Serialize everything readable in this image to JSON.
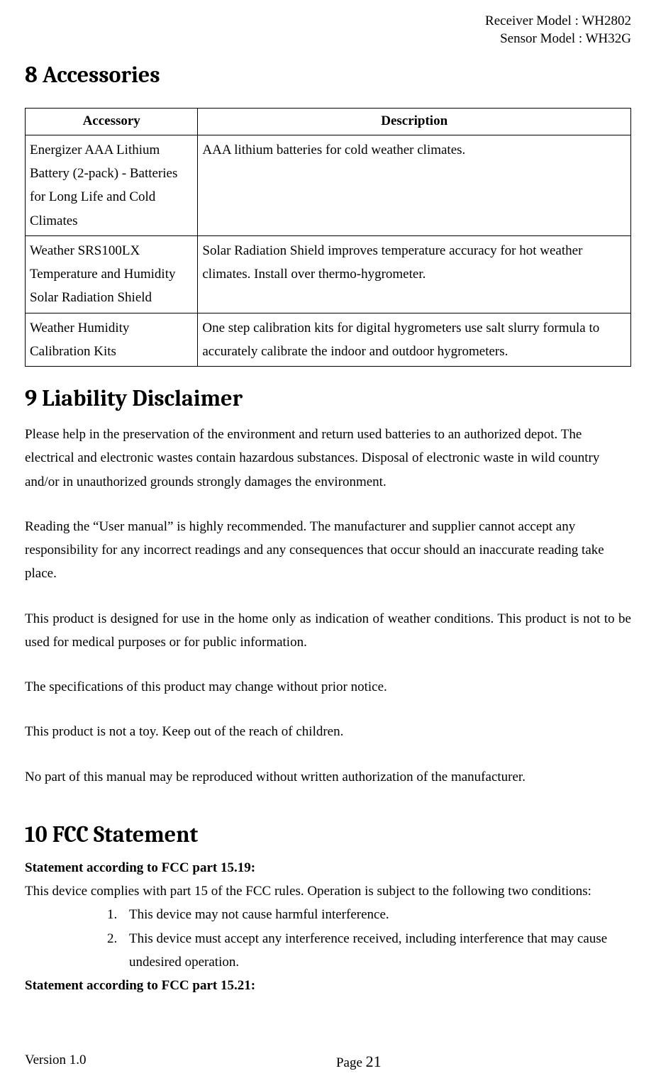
{
  "header": {
    "receiver_model": "Receiver Model : WH2802",
    "sensor_model": "Sensor Model : WH32G"
  },
  "section8": {
    "heading": "8  Accessories",
    "table": {
      "columns": [
        "Accessory",
        "Description"
      ],
      "rows": [
        [
          "Energizer AAA Lithium Battery (2-pack) - Batteries for Long Life and Cold Climates",
          "AAA lithium batteries for cold weather climates."
        ],
        [
          "Weather SRS100LX Temperature and Humidity Solar Radiation Shield",
          "Solar Radiation Shield improves temperature accuracy for hot weather climates. Install over thermo-hygrometer."
        ],
        [
          "Weather Humidity Calibration Kits",
          "One step calibration kits for digital hygrometers use salt slurry formula to accurately calibrate the indoor and outdoor hygrometers."
        ]
      ]
    }
  },
  "section9": {
    "heading": "9  Liability Disclaimer",
    "p1": "Please help in the preservation of the environment and return used batteries to an authorized depot. The electrical and electronic wastes contain hazardous substances. Disposal of electronic waste in wild country and/or in unauthorized grounds strongly damages the environment.",
    "p2": "Reading the “User manual” is highly recommended. The manufacturer and supplier cannot accept any responsibility for any incorrect readings and any consequences that occur should an inaccurate reading take place.",
    "p3": "This product is designed for use in the home only as indication of weather conditions. This product is not to be used for medical purposes or for public information.",
    "p4": "The specifications of this product may change without prior notice.",
    "p5": "This product is not a toy. Keep out of the reach of children.",
    "p6": "No part of this manual may be reproduced without written authorization of the manufacturer."
  },
  "section10": {
    "heading": "10  FCC Statement",
    "sub1": "Statement according to FCC part 15.19:",
    "intro": "This device complies with part 15 of the FCC rules. Operation is subject to the following two conditions:",
    "list": [
      "This device may not cause harmful interference.",
      "This device must accept any interference received, including interference that may cause undesired operation."
    ],
    "sub2": "Statement according to FCC part 15.21:"
  },
  "footer": {
    "version": "Version 1.0",
    "page_label": "Page ",
    "page_number": "21"
  }
}
